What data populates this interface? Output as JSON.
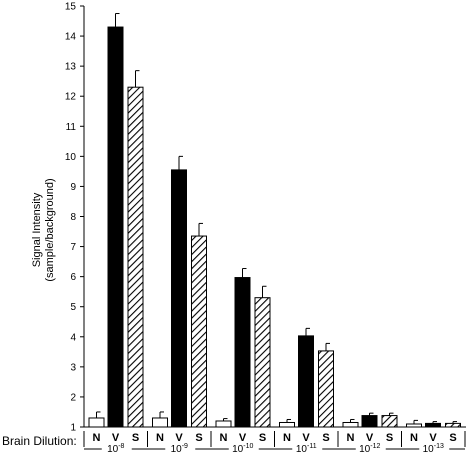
{
  "chart_data": {
    "type": "bar",
    "ylabel": [
      "Signal Intensity",
      "(sample/background)"
    ],
    "ylim": [
      1,
      15
    ],
    "yticks": [
      1,
      2,
      3,
      4,
      5,
      6,
      7,
      8,
      9,
      10,
      11,
      12,
      13,
      14,
      15
    ],
    "x_prefix_label": "Brain Dilution:",
    "group_labels": [
      {
        "base": "10",
        "exp": "-8"
      },
      {
        "base": "10",
        "exp": "-9"
      },
      {
        "base": "10",
        "exp": "-10"
      },
      {
        "base": "10",
        "exp": "-11"
      },
      {
        "base": "10",
        "exp": "-12"
      },
      {
        "base": "10",
        "exp": "-13"
      }
    ],
    "series": [
      {
        "name": "N",
        "fill": "white",
        "values": [
          1.3,
          1.3,
          1.2,
          1.15,
          1.15,
          1.1
        ],
        "errors": [
          0.2,
          0.2,
          0.08,
          0.1,
          0.1,
          0.12
        ]
      },
      {
        "name": "V",
        "fill": "black",
        "values": [
          14.3,
          9.55,
          5.97,
          4.03,
          1.38,
          1.12
        ],
        "errors": [
          0.45,
          0.45,
          0.3,
          0.25,
          0.08,
          0.06
        ]
      },
      {
        "name": "S",
        "fill": "hatched",
        "values": [
          12.3,
          7.35,
          5.3,
          3.53,
          1.38,
          1.12
        ],
        "errors": [
          0.55,
          0.42,
          0.38,
          0.25,
          0.08,
          0.06
        ]
      }
    ],
    "grid": false,
    "legend": "none"
  }
}
